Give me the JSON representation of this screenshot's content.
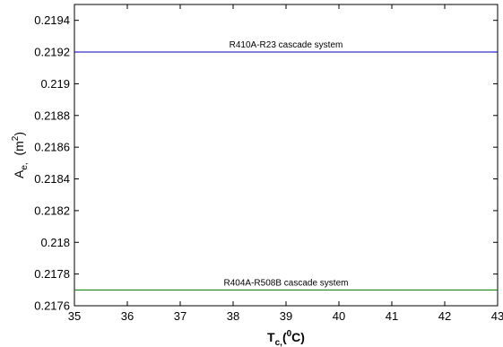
{
  "chart_data": {
    "type": "line",
    "xlabel": {
      "main": "T",
      "sub": "c,",
      "paren_open": "(",
      "sup": "0",
      "unit": "C)"
    },
    "ylabel": {
      "main": "A",
      "sub": "e,",
      "unit_open": "  (m",
      "sup": "2",
      "unit_close": ")"
    },
    "xlim": [
      35,
      43
    ],
    "ylim": [
      0.2176,
      0.2195
    ],
    "x_ticks": [
      35,
      36,
      37,
      38,
      39,
      40,
      41,
      42,
      43
    ],
    "x_tick_labels": [
      "35",
      "36",
      "37",
      "38",
      "39",
      "40",
      "41",
      "42",
      "43"
    ],
    "y_ticks": [
      0.2176,
      0.2178,
      0.218,
      0.2182,
      0.2184,
      0.2186,
      0.2188,
      0.219,
      0.2192,
      0.2194
    ],
    "y_tick_labels": [
      "0.2176",
      "0.2178",
      "0.218",
      "0.2182",
      "0.2184",
      "0.2186",
      "0.2188",
      "0.219",
      "0.2192",
      "0.2194"
    ],
    "grid": false,
    "series": [
      {
        "name": "R410A-R23 cascade system",
        "color": "#0000cc",
        "x": [
          35,
          43
        ],
        "y": [
          0.2192,
          0.2192
        ]
      },
      {
        "name": "R404A-R508B cascade system",
        "color": "#007700",
        "x": [
          35,
          43
        ],
        "y": [
          0.2177,
          0.2177
        ]
      }
    ]
  }
}
